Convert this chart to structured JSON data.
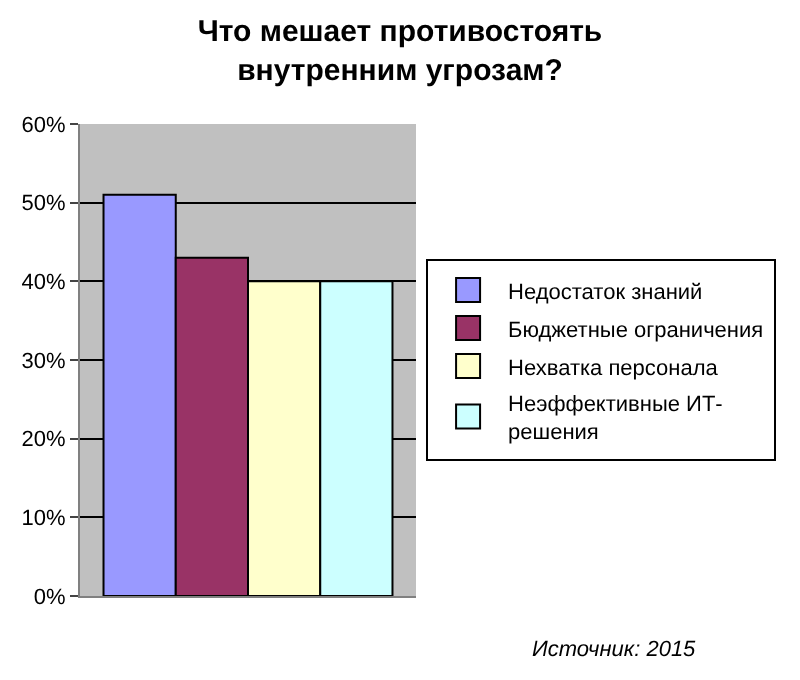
{
  "chart_data": {
    "type": "bar",
    "title": "Что мешает противостоять\nвнутренним угрозам?",
    "categories": [
      null
    ],
    "series": [
      {
        "name": "Недостаток знаний",
        "color": "#9999ff",
        "values": [
          51
        ]
      },
      {
        "name": "Бюджетные ограничения",
        "color": "#993366",
        "values": [
          43
        ]
      },
      {
        "name": "Нехватка персонала",
        "color": "#ffffcc",
        "values": [
          40
        ]
      },
      {
        "name": "Неэффективные ИТ-\nрешения",
        "color": "#ccffff",
        "values": [
          40
        ]
      }
    ],
    "ylim": [
      0,
      60
    ],
    "yticks": [
      {
        "value": 0,
        "label": "0%"
      },
      {
        "value": 10,
        "label": "10%"
      },
      {
        "value": 20,
        "label": "20%"
      },
      {
        "value": 30,
        "label": "30%"
      },
      {
        "value": 40,
        "label": "40%"
      },
      {
        "value": 50,
        "label": "50%"
      },
      {
        "value": 60,
        "label": "60%"
      }
    ],
    "grid": "y",
    "legend": "right",
    "annotations": [
      "Источник: 2015"
    ]
  }
}
